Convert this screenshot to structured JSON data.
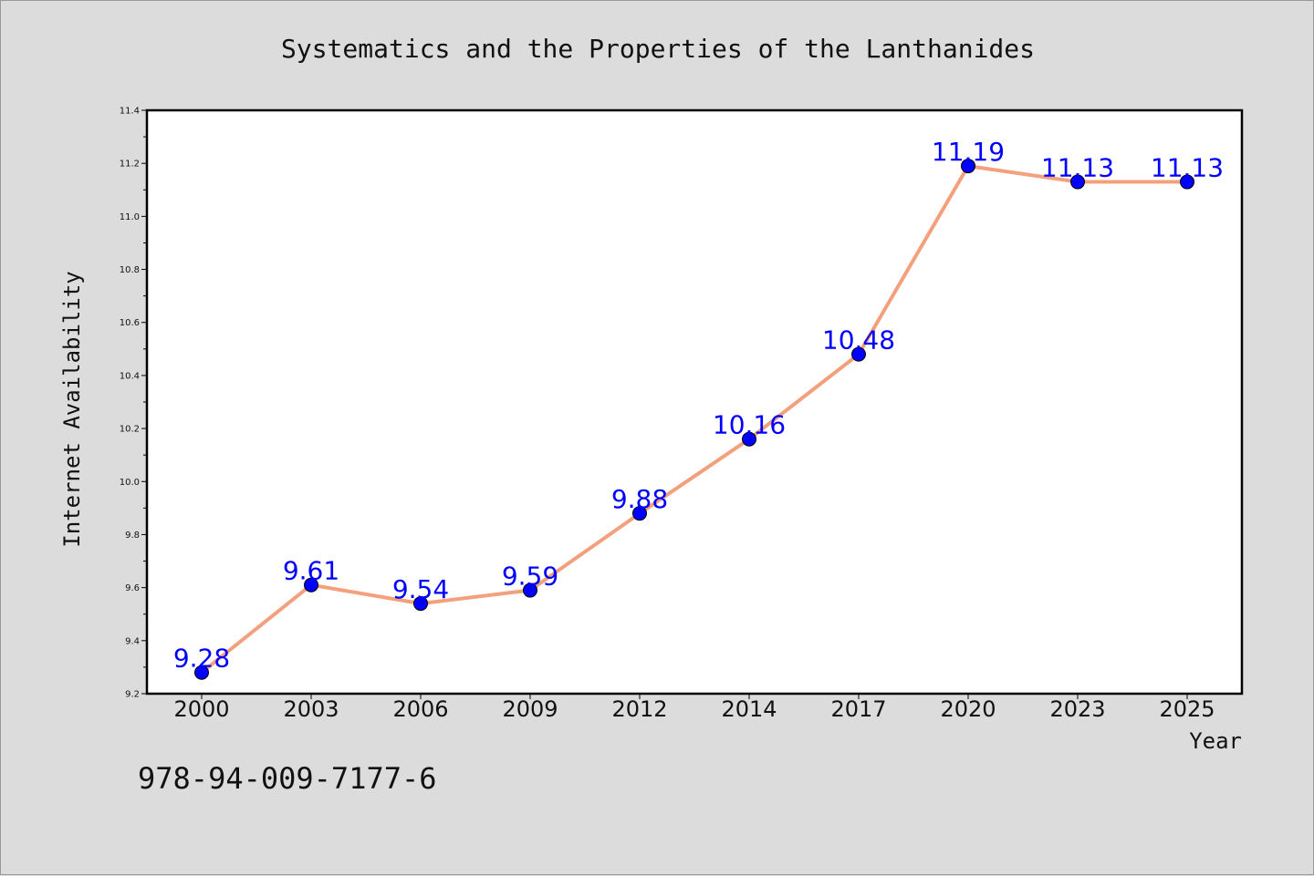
{
  "chart_data": {
    "type": "line",
    "title": "Systematics and the Properties of the Lanthanides",
    "xlabel": "Year",
    "ylabel": "Internet Availability",
    "categories": [
      "2000",
      "2003",
      "2006",
      "2009",
      "2012",
      "2014",
      "2017",
      "2020",
      "2023",
      "2025"
    ],
    "series": [
      {
        "values": [
          9.28,
          9.61,
          9.54,
          9.59,
          9.88,
          10.16,
          10.48,
          11.19,
          11.13,
          11.13
        ]
      }
    ],
    "ylim": [
      9.2,
      11.4
    ],
    "yticks": [
      "9.2",
      "9.4",
      "9.6",
      "9.8",
      "10.0",
      "10.2",
      "10.4",
      "10.6",
      "10.8",
      "11.0",
      "11.2",
      "11.4"
    ],
    "data_labels": [
      "9.28",
      "9.61",
      "9.54",
      "9.59",
      "9.88",
      "10.16",
      "10.48",
      "11.19",
      "11.13",
      "11.13"
    ],
    "grid": false,
    "legend": "none",
    "line_color": "#f4a07c",
    "marker_color": "#0000ff",
    "label_color": "#0000ff"
  },
  "annotation": "978-94-009-7177-6"
}
